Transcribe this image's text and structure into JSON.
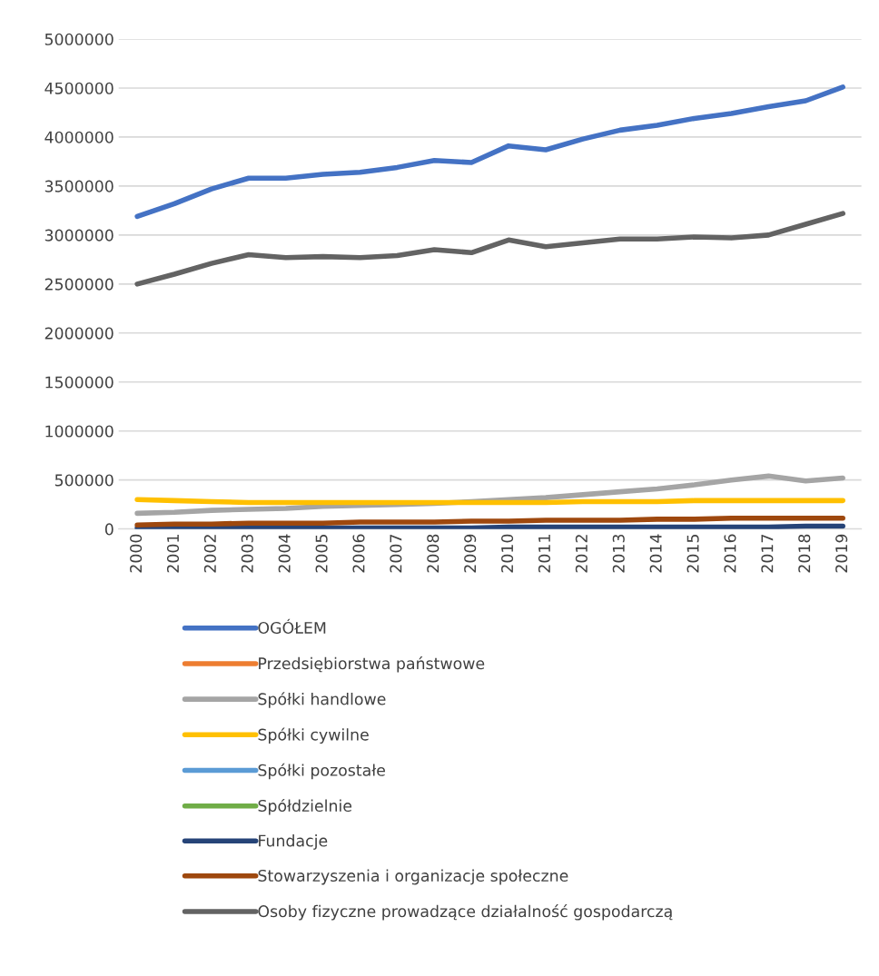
{
  "chart_data": {
    "type": "line",
    "categories": [
      "2000",
      "2001",
      "2002",
      "2003",
      "2004",
      "2005",
      "2006",
      "2007",
      "2008",
      "2009",
      "2010",
      "2011",
      "2012",
      "2013",
      "2014",
      "2015",
      "2016",
      "2017",
      "2018",
      "2019"
    ],
    "ylim": [
      0,
      5000000
    ],
    "yticks": [
      0,
      500000,
      1000000,
      1500000,
      2000000,
      2500000,
      3000000,
      3500000,
      4000000,
      4500000,
      5000000
    ],
    "grid": "y",
    "legend": "bottom",
    "marker": "none",
    "line_style": "solid",
    "series": [
      {
        "name": "OGÓŁEM",
        "color": "#4472c4",
        "values": [
          3190000,
          3320000,
          3470000,
          3580000,
          3580000,
          3620000,
          3640000,
          3690000,
          3760000,
          3740000,
          3910000,
          3870000,
          3980000,
          4070000,
          4120000,
          4190000,
          4240000,
          4310000,
          4370000,
          4510000
        ]
      },
      {
        "name": "Przedsiębiorstwa państwowe",
        "color": "#ed7d31",
        "values": [
          null,
          null,
          null,
          null,
          null,
          null,
          null,
          null,
          null,
          null,
          null,
          null,
          null,
          null,
          null,
          null,
          null,
          null,
          null,
          null
        ]
      },
      {
        "name": "Spółki handlowe",
        "color": "#a5a5a5",
        "values": [
          160000,
          170000,
          190000,
          200000,
          210000,
          230000,
          240000,
          250000,
          260000,
          280000,
          300000,
          320000,
          350000,
          380000,
          410000,
          450000,
          500000,
          540000,
          490000,
          520000
        ]
      },
      {
        "name": "Spółki cywilne",
        "color": "#ffc000",
        "values": [
          300000,
          290000,
          280000,
          270000,
          270000,
          270000,
          270000,
          270000,
          270000,
          270000,
          270000,
          270000,
          280000,
          280000,
          280000,
          290000,
          290000,
          290000,
          290000,
          290000
        ]
      },
      {
        "name": "Spółki pozostałe",
        "color": "#5b9bd5",
        "values": [
          null,
          null,
          null,
          null,
          null,
          null,
          null,
          null,
          null,
          null,
          null,
          null,
          null,
          null,
          null,
          null,
          null,
          null,
          null,
          null
        ]
      },
      {
        "name": "Spółdzielnie",
        "color": "#70ad47",
        "values": [
          null,
          null,
          null,
          null,
          null,
          null,
          null,
          null,
          null,
          null,
          null,
          null,
          null,
          null,
          null,
          null,
          null,
          null,
          null,
          null
        ]
      },
      {
        "name": "Fundacje",
        "color": "#264478",
        "values": [
          10000,
          10000,
          10000,
          10000,
          10000,
          10000,
          10000,
          10000,
          10000,
          10000,
          20000,
          20000,
          20000,
          20000,
          20000,
          20000,
          20000,
          20000,
          30000,
          30000
        ]
      },
      {
        "name": "Stowarzyszenia i organizacje społeczne",
        "color": "#9e480e",
        "values": [
          40000,
          50000,
          50000,
          60000,
          60000,
          60000,
          70000,
          70000,
          70000,
          80000,
          80000,
          90000,
          90000,
          90000,
          100000,
          100000,
          110000,
          110000,
          110000,
          110000
        ]
      },
      {
        "name": "Osoby fizyczne prowadzące działalność gospodarczą",
        "color": "#636363",
        "values": [
          2500000,
          2600000,
          2710000,
          2800000,
          2770000,
          2780000,
          2770000,
          2790000,
          2850000,
          2820000,
          2950000,
          2880000,
          2920000,
          2960000,
          2960000,
          2980000,
          2970000,
          3000000,
          3110000,
          3220000
        ]
      }
    ]
  }
}
